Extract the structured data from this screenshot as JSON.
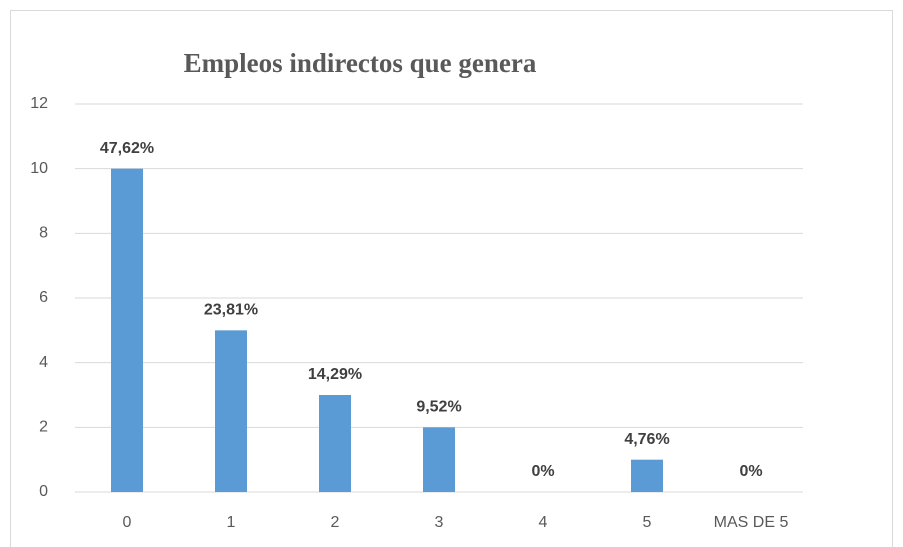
{
  "chart_data": {
    "type": "bar",
    "title": "Empleos indirectos que genera",
    "categories": [
      "0",
      "1",
      "2",
      "3",
      "4",
      "5",
      "MAS DE 5"
    ],
    "values": [
      10,
      5,
      3,
      2,
      0,
      1,
      0
    ],
    "percentages": [
      47.62,
      23.81,
      14.29,
      9.52,
      0,
      4.76,
      0
    ],
    "percentage_labels": [
      "47,62%",
      "23,81%",
      "14,29%",
      "9,52%",
      "0%",
      "4,76%",
      "0%"
    ],
    "color": "#5b9bd5",
    "ylim": [
      0,
      12
    ],
    "yticks": [
      0,
      2,
      4,
      6,
      8,
      10,
      12
    ],
    "grid": true
  }
}
